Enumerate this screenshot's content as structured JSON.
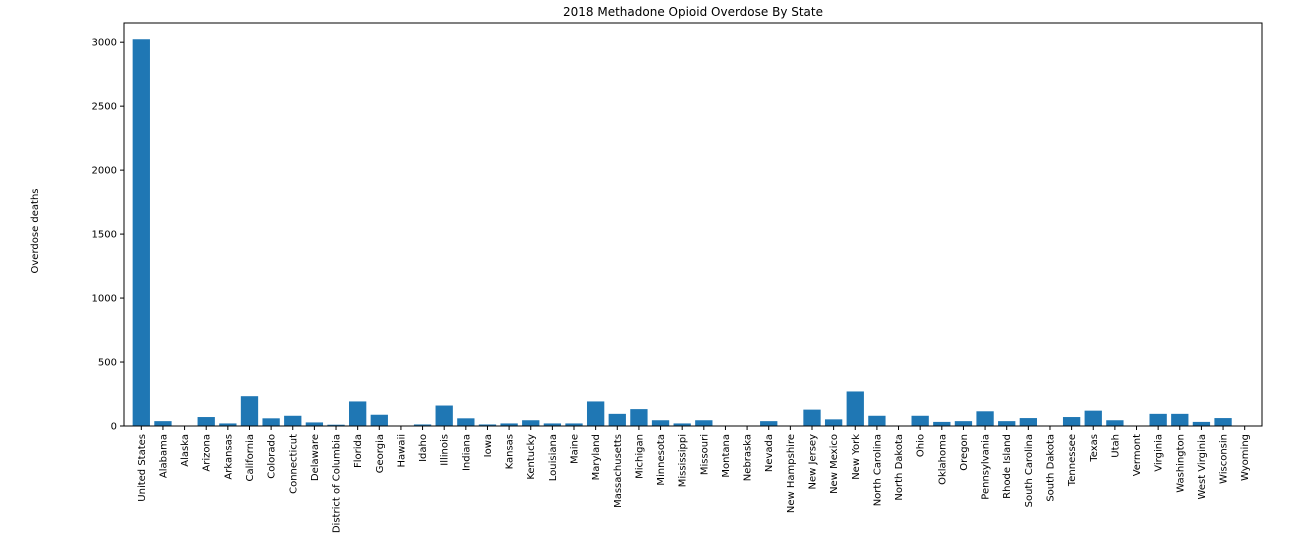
{
  "chart_data": {
    "type": "bar",
    "title": "2018 Methadone Opioid Overdose By State",
    "xlabel": "",
    "ylabel": "Overdose deaths",
    "ylim": [
      0,
      3150
    ],
    "yticks": [
      0,
      500,
      1000,
      1500,
      2000,
      2500,
      3000
    ],
    "grid": false,
    "bar_color": "#1f77b4",
    "categories": [
      "United States",
      "Alabama",
      "Alaska",
      "Arizona",
      "Arkansas",
      "California",
      "Colorado",
      "Connecticut",
      "Delaware",
      "District of Columbia",
      "Florida",
      "Georgia",
      "Hawaii",
      "Idaho",
      "Illinois",
      "Indiana",
      "Iowa",
      "Kansas",
      "Kentucky",
      "Louisiana",
      "Maine",
      "Maryland",
      "Massachusetts",
      "Michigan",
      "Minnesota",
      "Mississippi",
      "Missouri",
      "Montana",
      "Nebraska",
      "Nevada",
      "New Hampshire",
      "New Jersey",
      "New Mexico",
      "New York",
      "North Carolina",
      "North Dakota",
      "Ohio",
      "Oklahoma",
      "Oregon",
      "Pennsylvania",
      "Rhode Island",
      "South Carolina",
      "South Dakota",
      "Tennessee",
      "Texas",
      "Utah",
      "Vermont",
      "Virginia",
      "Washington",
      "West Virginia",
      "Wisconsin",
      "Wyoming"
    ],
    "values": [
      3023,
      38,
      0,
      70,
      20,
      233,
      60,
      80,
      28,
      10,
      192,
      88,
      0,
      12,
      160,
      60,
      12,
      20,
      45,
      20,
      20,
      192,
      95,
      132,
      45,
      20,
      45,
      0,
      0,
      38,
      0,
      128,
      52,
      270,
      80,
      0,
      80,
      32,
      38,
      115,
      38,
      62,
      0,
      70,
      120,
      45,
      0,
      95,
      95,
      32,
      62,
      0
    ]
  }
}
